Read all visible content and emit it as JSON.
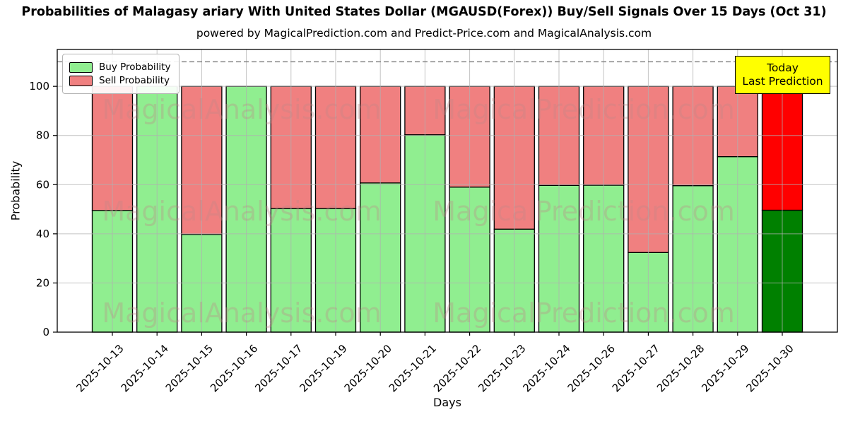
{
  "chart_data": {
    "type": "bar",
    "stacked": true,
    "title": "Probabilities of Malagasy ariary With United States Dollar (MGAUSD(Forex)) Buy/Sell Signals Over 15 Days (Oct 31)",
    "subtitle": "powered by MagicalPrediction.com and Predict-Price.com and MagicalAnalysis.com",
    "xlabel": "Days",
    "ylabel": "Probability",
    "ylim": [
      0,
      115
    ],
    "yticks": [
      0,
      20,
      40,
      60,
      80,
      100
    ],
    "threshold_line_y": 110,
    "grid": true,
    "legend_position": "upper-left",
    "categories": [
      "2025-10-13",
      "2025-10-14",
      "2025-10-15",
      "2025-10-16",
      "2025-10-17",
      "2025-10-19",
      "2025-10-20",
      "2025-10-21",
      "2025-10-22",
      "2025-10-23",
      "2025-10-24",
      "2025-10-26",
      "2025-10-27",
      "2025-10-28",
      "2025-10-29",
      "2025-10-30"
    ],
    "series": [
      {
        "name": "Buy Probability",
        "color": "#90ee90",
        "values": [
          49.5,
          100,
          39.8,
          100,
          50.3,
          50.3,
          60.7,
          80.3,
          59.0,
          41.9,
          59.7,
          59.8,
          32.4,
          59.6,
          71.4,
          49.6
        ]
      },
      {
        "name": "Sell Probability",
        "color": "#f08080",
        "values": [
          50.5,
          0,
          60.2,
          0,
          49.7,
          49.7,
          39.3,
          19.7,
          41.0,
          58.1,
          40.3,
          40.2,
          67.6,
          40.4,
          28.6,
          50.4
        ]
      }
    ],
    "today_bar": {
      "index": 15,
      "buy_color": "#008000",
      "sell_color": "#ff0000"
    },
    "legend": {
      "entries": [
        {
          "label": "Buy Probability",
          "color": "#90ee90"
        },
        {
          "label": "Sell Probability",
          "color": "#f08080"
        }
      ]
    },
    "annotation": {
      "lines": [
        "Today",
        "Last Prediction"
      ],
      "bg_color": "#ffff00"
    },
    "watermarks": [
      "MagicalAnalysis.com",
      "MagicalPrediction.com"
    ],
    "bar_edge_color": "#000000",
    "grid_color": "#b0b0b0",
    "threshold_line_color": "#7f7f7f"
  }
}
